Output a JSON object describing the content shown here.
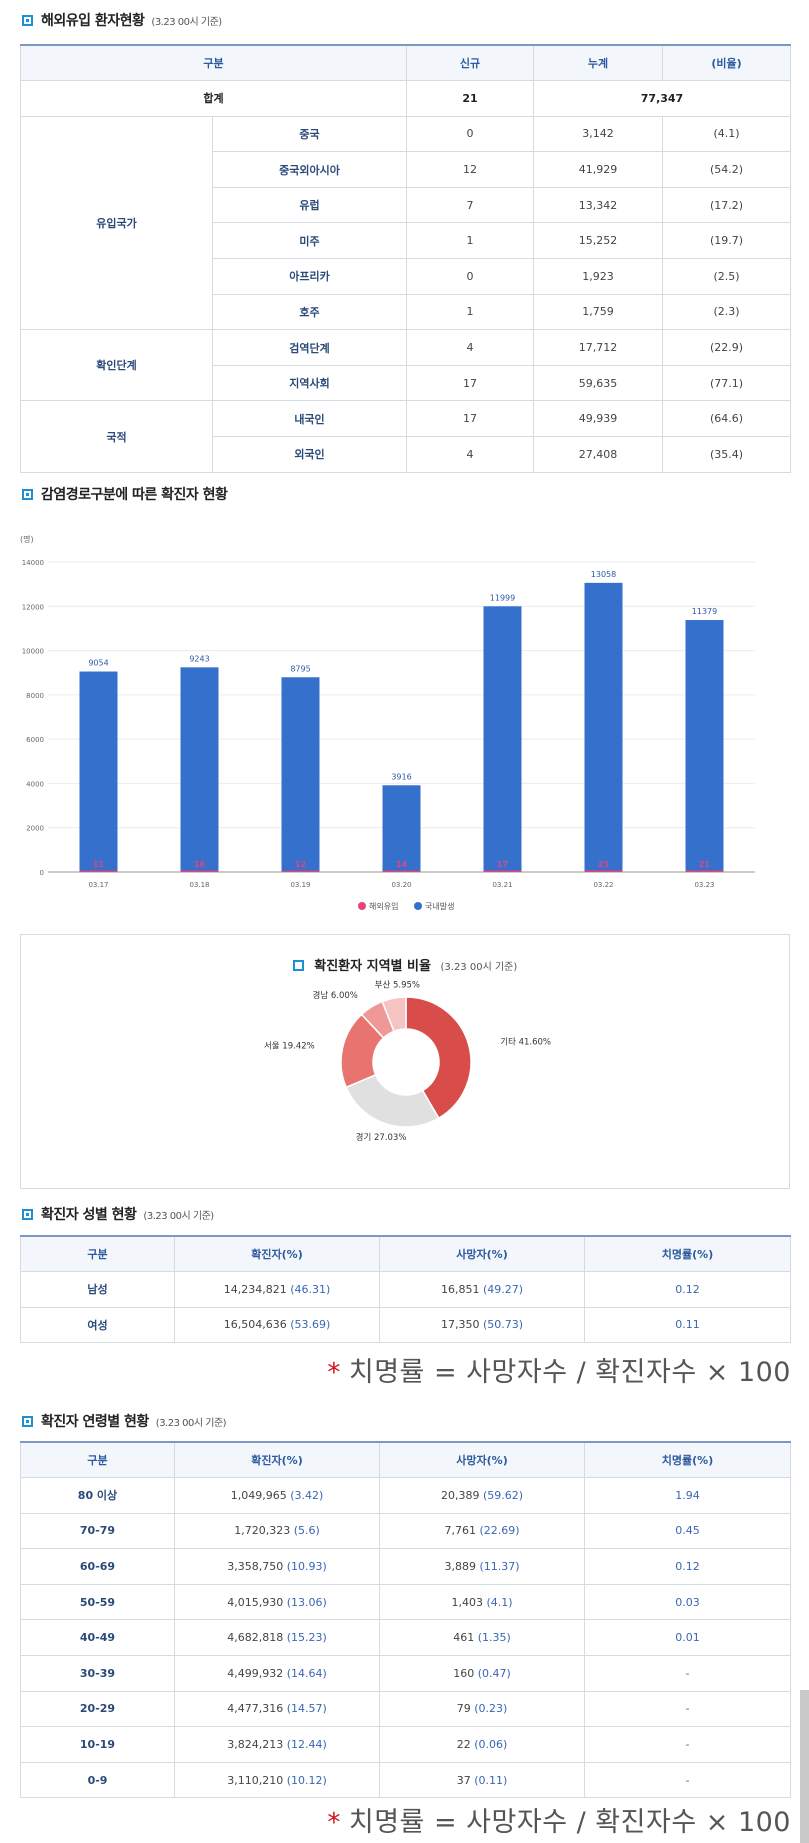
{
  "inflow": {
    "title": "해외유입 환자현황",
    "sub": "(3.23 00시 기준)",
    "headers": [
      "구분",
      "신규",
      "누계",
      "(비율)"
    ],
    "total": {
      "label": "합계",
      "new": "21",
      "cum": "77,347"
    },
    "groups": [
      {
        "name": "유입국가",
        "rows": [
          {
            "label": "중국",
            "new": "0",
            "cum": "3,142",
            "ratio": "(4.1)"
          },
          {
            "label": "중국외아시아",
            "new": "12",
            "cum": "41,929",
            "ratio": "(54.2)"
          },
          {
            "label": "유럽",
            "new": "7",
            "cum": "13,342",
            "ratio": "(17.2)"
          },
          {
            "label": "미주",
            "new": "1",
            "cum": "15,252",
            "ratio": "(19.7)"
          },
          {
            "label": "아프리카",
            "new": "0",
            "cum": "1,923",
            "ratio": "(2.5)"
          },
          {
            "label": "호주",
            "new": "1",
            "cum": "1,759",
            "ratio": "(2.3)"
          }
        ]
      },
      {
        "name": "확인단계",
        "rows": [
          {
            "label": "검역단계",
            "new": "4",
            "cum": "17,712",
            "ratio": "(22.9)"
          },
          {
            "label": "지역사회",
            "new": "17",
            "cum": "59,635",
            "ratio": "(77.1)"
          }
        ]
      },
      {
        "name": "국적",
        "rows": [
          {
            "label": "내국인",
            "new": "17",
            "cum": "49,939",
            "ratio": "(64.6)"
          },
          {
            "label": "외국인",
            "new": "4",
            "cum": "27,408",
            "ratio": "(35.4)"
          }
        ]
      }
    ]
  },
  "route": {
    "title": "감염경로구분에 따른 확진자 현황"
  },
  "chart_data": [
    {
      "type": "bar",
      "ylabel": "(명)",
      "ylim": [
        0,
        14000
      ],
      "yticks": [
        "0",
        "2000",
        "4000",
        "6000",
        "8000",
        "10000",
        "12000",
        "14000"
      ],
      "categories": [
        "03.17",
        "03.18",
        "03.19",
        "03.20",
        "03.21",
        "03.22",
        "03.23"
      ],
      "series": [
        {
          "name": "해외유입",
          "values": [
            11,
            16,
            12,
            14,
            17,
            23,
            21
          ],
          "color": "#e9417d"
        },
        {
          "name": "국내발생",
          "values": [
            9054,
            9243,
            8795,
            3916,
            11999,
            13058,
            11379
          ],
          "color": "#3570cc"
        }
      ],
      "legend": "bottom"
    },
    {
      "type": "pie",
      "title": "확진환자 지역별 비율",
      "sub": "(3.23 00시 기준)",
      "slices": [
        {
          "label": "기타 41.60%",
          "value": 41.6,
          "color": "#d84c4a"
        },
        {
          "label": "경기 27.03%",
          "value": 27.03,
          "color": "#e0e0e0"
        },
        {
          "label": "서울 19.42%",
          "value": 19.42,
          "color": "#e87470"
        },
        {
          "label": "경남 6.00%",
          "value": 6.0,
          "color": "#ee9997"
        },
        {
          "label": "부산 5.95%",
          "value": 5.95,
          "color": "#f4c3c2"
        }
      ]
    }
  ],
  "gender": {
    "title": "확진자 성별 현황",
    "sub": "(3.23 00시 기준)",
    "headers": [
      "구분",
      "확진자(%)",
      "사망자(%)",
      "치명률(%)"
    ],
    "rows": [
      {
        "label": "남성",
        "conf": "14,234,821",
        "conf_pct": "(46.31)",
        "death": "16,851",
        "death_pct": "(49.27)",
        "rate": "0.12"
      },
      {
        "label": "여성",
        "conf": "16,504,636",
        "conf_pct": "(53.69)",
        "death": "17,350",
        "death_pct": "(50.73)",
        "rate": "0.11"
      }
    ]
  },
  "formula": {
    "star": "*",
    "text": "치명률 = 사망자수 / 확진자수 × 100"
  },
  "age": {
    "title": "확진자 연령별 현황",
    "sub": "(3.23 00시 기준)",
    "headers": [
      "구분",
      "확진자(%)",
      "사망자(%)",
      "치명률(%)"
    ],
    "rows": [
      {
        "label": "80 이상",
        "conf": "1,049,965",
        "conf_pct": "(3.42)",
        "death": "20,389",
        "death_pct": "(59.62)",
        "rate": "1.94"
      },
      {
        "label": "70-79",
        "conf": "1,720,323",
        "conf_pct": "(5.6)",
        "death": "7,761",
        "death_pct": "(22.69)",
        "rate": "0.45"
      },
      {
        "label": "60-69",
        "conf": "3,358,750",
        "conf_pct": "(10.93)",
        "death": "3,889",
        "death_pct": "(11.37)",
        "rate": "0.12"
      },
      {
        "label": "50-59",
        "conf": "4,015,930",
        "conf_pct": "(13.06)",
        "death": "1,403",
        "death_pct": "(4.1)",
        "rate": "0.03"
      },
      {
        "label": "40-49",
        "conf": "4,682,818",
        "conf_pct": "(15.23)",
        "death": "461",
        "death_pct": "(1.35)",
        "rate": "0.01"
      },
      {
        "label": "30-39",
        "conf": "4,499,932",
        "conf_pct": "(14.64)",
        "death": "160",
        "death_pct": "(0.47)",
        "rate": "-"
      },
      {
        "label": "20-29",
        "conf": "4,477,316",
        "conf_pct": "(14.57)",
        "death": "79",
        "death_pct": "(0.23)",
        "rate": "-"
      },
      {
        "label": "10-19",
        "conf": "3,824,213",
        "conf_pct": "(12.44)",
        "death": "22",
        "death_pct": "(0.06)",
        "rate": "-"
      },
      {
        "label": "0-9",
        "conf": "3,110,210",
        "conf_pct": "(10.12)",
        "death": "37",
        "death_pct": "(0.11)",
        "rate": "-"
      }
    ]
  }
}
